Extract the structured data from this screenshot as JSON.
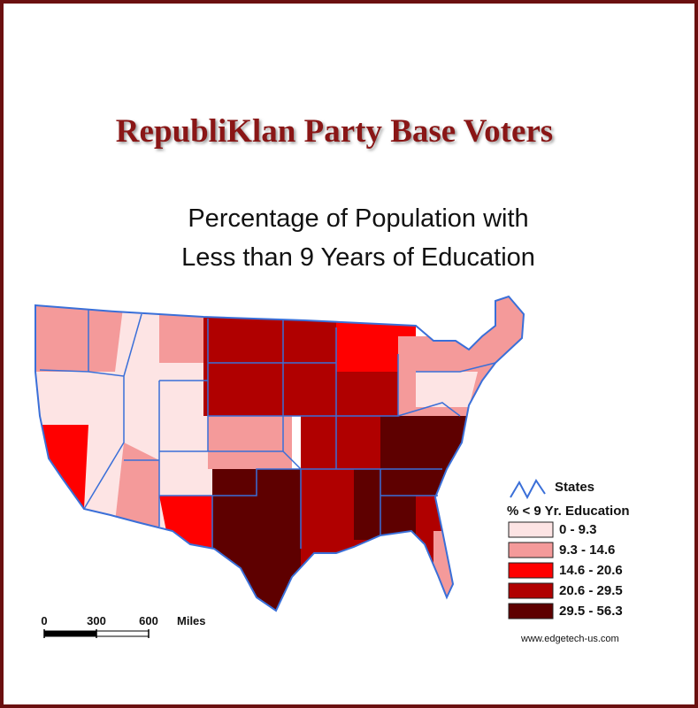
{
  "title": "RepubliKlan Party Base Voters",
  "subtitle": [
    "Percentage of Population with",
    "Less than 9 Years of Education"
  ],
  "legend": {
    "layer": "States",
    "field": "% < 9 Yr. Education",
    "classes": [
      {
        "label": "0 - 9.3",
        "color": "#fde4e4"
      },
      {
        "label": "9.3 - 14.6",
        "color": "#f49a9a"
      },
      {
        "label": "14.6 - 20.6",
        "color": "#ff0000"
      },
      {
        "label": "20.6 - 29.5",
        "color": "#b00000"
      },
      {
        "label": "29.5 - 56.3",
        "color": "#5e0000"
      }
    ]
  },
  "scale_bar": {
    "ticks": [
      0,
      300,
      600
    ],
    "unit": "Miles"
  },
  "credit": "www.edgetech-us.com"
}
